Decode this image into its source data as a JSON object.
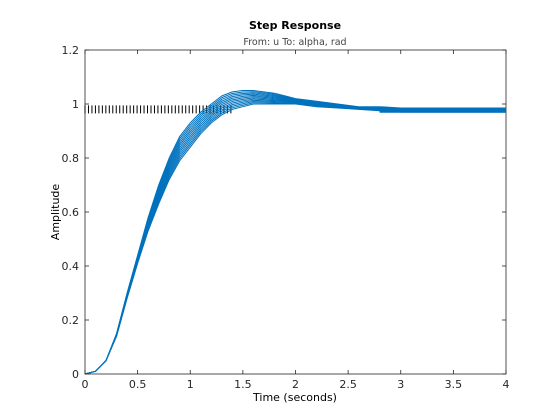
{
  "chart_data": {
    "type": "line",
    "title": "Step Response",
    "subtitle": "From: u  To: alpha, rad",
    "xlabel": "Time (seconds)",
    "ylabel": "Amplitude",
    "xlim": [
      0,
      4
    ],
    "ylim": [
      0,
      1.2
    ],
    "x_ticks": [
      "0",
      "0.5",
      "1",
      "1.5",
      "2",
      "2.5",
      "3",
      "3.5",
      "4"
    ],
    "y_ticks": [
      "0",
      "0.2",
      "0.4",
      "0.6",
      "0.8",
      "1",
      "1.2"
    ],
    "grid": false,
    "line_color": "#0072BD",
    "steady_state_marker_color": "#000000",
    "steady_state_value": 0.98,
    "steady_state_marker_x_range": [
      0,
      1.4
    ],
    "steady_state_marker_spacing": 0.033,
    "series_count": 12,
    "t_samples": [
      0,
      0.1,
      0.2,
      0.3,
      0.4,
      0.5,
      0.6,
      0.7,
      0.8,
      0.9,
      1.0,
      1.1,
      1.2,
      1.3,
      1.4,
      1.5,
      1.6,
      1.7,
      1.8,
      1.9,
      2.0,
      2.2,
      2.4,
      2.6,
      2.8,
      3.0,
      3.2,
      3.5,
      4.0
    ],
    "envelope_upper": [
      0,
      0.01,
      0.05,
      0.15,
      0.3,
      0.44,
      0.58,
      0.7,
      0.8,
      0.88,
      0.93,
      0.97,
      1.0,
      1.03,
      1.045,
      1.05,
      1.05,
      1.045,
      1.04,
      1.03,
      1.02,
      1.01,
      1.0,
      0.99,
      0.99,
      0.985,
      0.985,
      0.985,
      0.985
    ],
    "envelope_lower": [
      0,
      0.01,
      0.05,
      0.14,
      0.28,
      0.41,
      0.53,
      0.63,
      0.72,
      0.79,
      0.84,
      0.89,
      0.93,
      0.96,
      0.98,
      0.99,
      1.0,
      1.0,
      1.0,
      1.0,
      1.0,
      0.99,
      0.985,
      0.98,
      0.975,
      0.97,
      0.97,
      0.97,
      0.97
    ]
  }
}
